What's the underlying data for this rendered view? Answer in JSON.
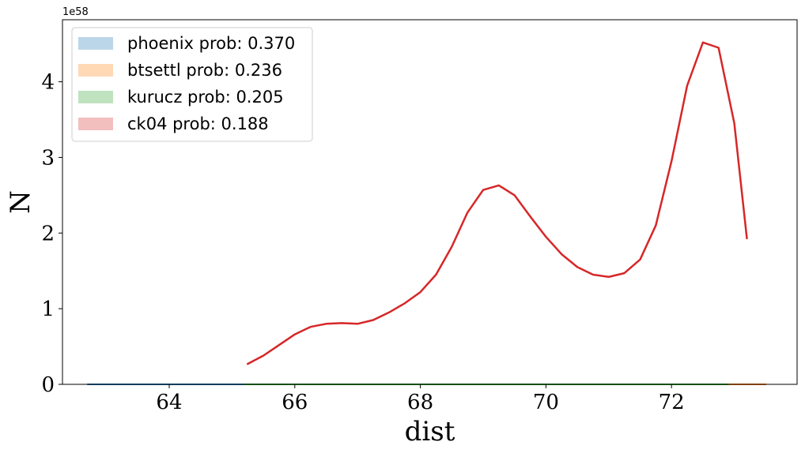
{
  "chart_data": {
    "type": "line",
    "xlabel": "dist",
    "ylabel": "N",
    "y_offset_label": "1e58",
    "xlim": [
      62.3,
      74.0
    ],
    "ylim": [
      0,
      4.82
    ],
    "x_ticks": [
      64,
      66,
      68,
      70,
      72
    ],
    "y_ticks": [
      0,
      1,
      2,
      3,
      4
    ],
    "legend_position": "upper-left",
    "grid": false,
    "series": [
      {
        "name": "phoenix prob: 0.370",
        "color": "#1f77b4",
        "legend_alpha": 0.3,
        "x": [
          62.7,
          73.2
        ],
        "y": [
          0,
          0
        ]
      },
      {
        "name": "btsettl prob: 0.236",
        "color": "#ff7f0e",
        "legend_alpha": 0.3,
        "x": [
          72.6,
          73.5
        ],
        "y": [
          0,
          0
        ]
      },
      {
        "name": "kurucz prob: 0.205",
        "color": "#2ca02c",
        "legend_alpha": 0.3,
        "x": [
          65.2,
          72.9
        ],
        "y": [
          0,
          0
        ]
      },
      {
        "name": "ck04 prob: 0.188",
        "color": "#d62728",
        "legend_alpha": 0.3,
        "x": [
          65.25,
          65.5,
          65.75,
          66.0,
          66.25,
          66.5,
          66.75,
          67.0,
          67.25,
          67.5,
          67.75,
          68.0,
          68.25,
          68.5,
          68.75,
          69.0,
          69.25,
          69.5,
          69.75,
          70.0,
          70.25,
          70.5,
          70.75,
          71.0,
          71.25,
          71.5,
          71.75,
          72.0,
          72.25,
          72.5,
          72.75,
          73.0,
          73.2
        ],
        "y": [
          0.27,
          0.38,
          0.52,
          0.66,
          0.76,
          0.8,
          0.81,
          0.8,
          0.85,
          0.95,
          1.07,
          1.22,
          1.45,
          1.82,
          2.27,
          2.57,
          2.63,
          2.5,
          2.22,
          1.95,
          1.72,
          1.55,
          1.45,
          1.42,
          1.47,
          1.65,
          2.1,
          2.95,
          3.95,
          4.52,
          4.45,
          3.45,
          1.93
        ]
      }
    ]
  }
}
